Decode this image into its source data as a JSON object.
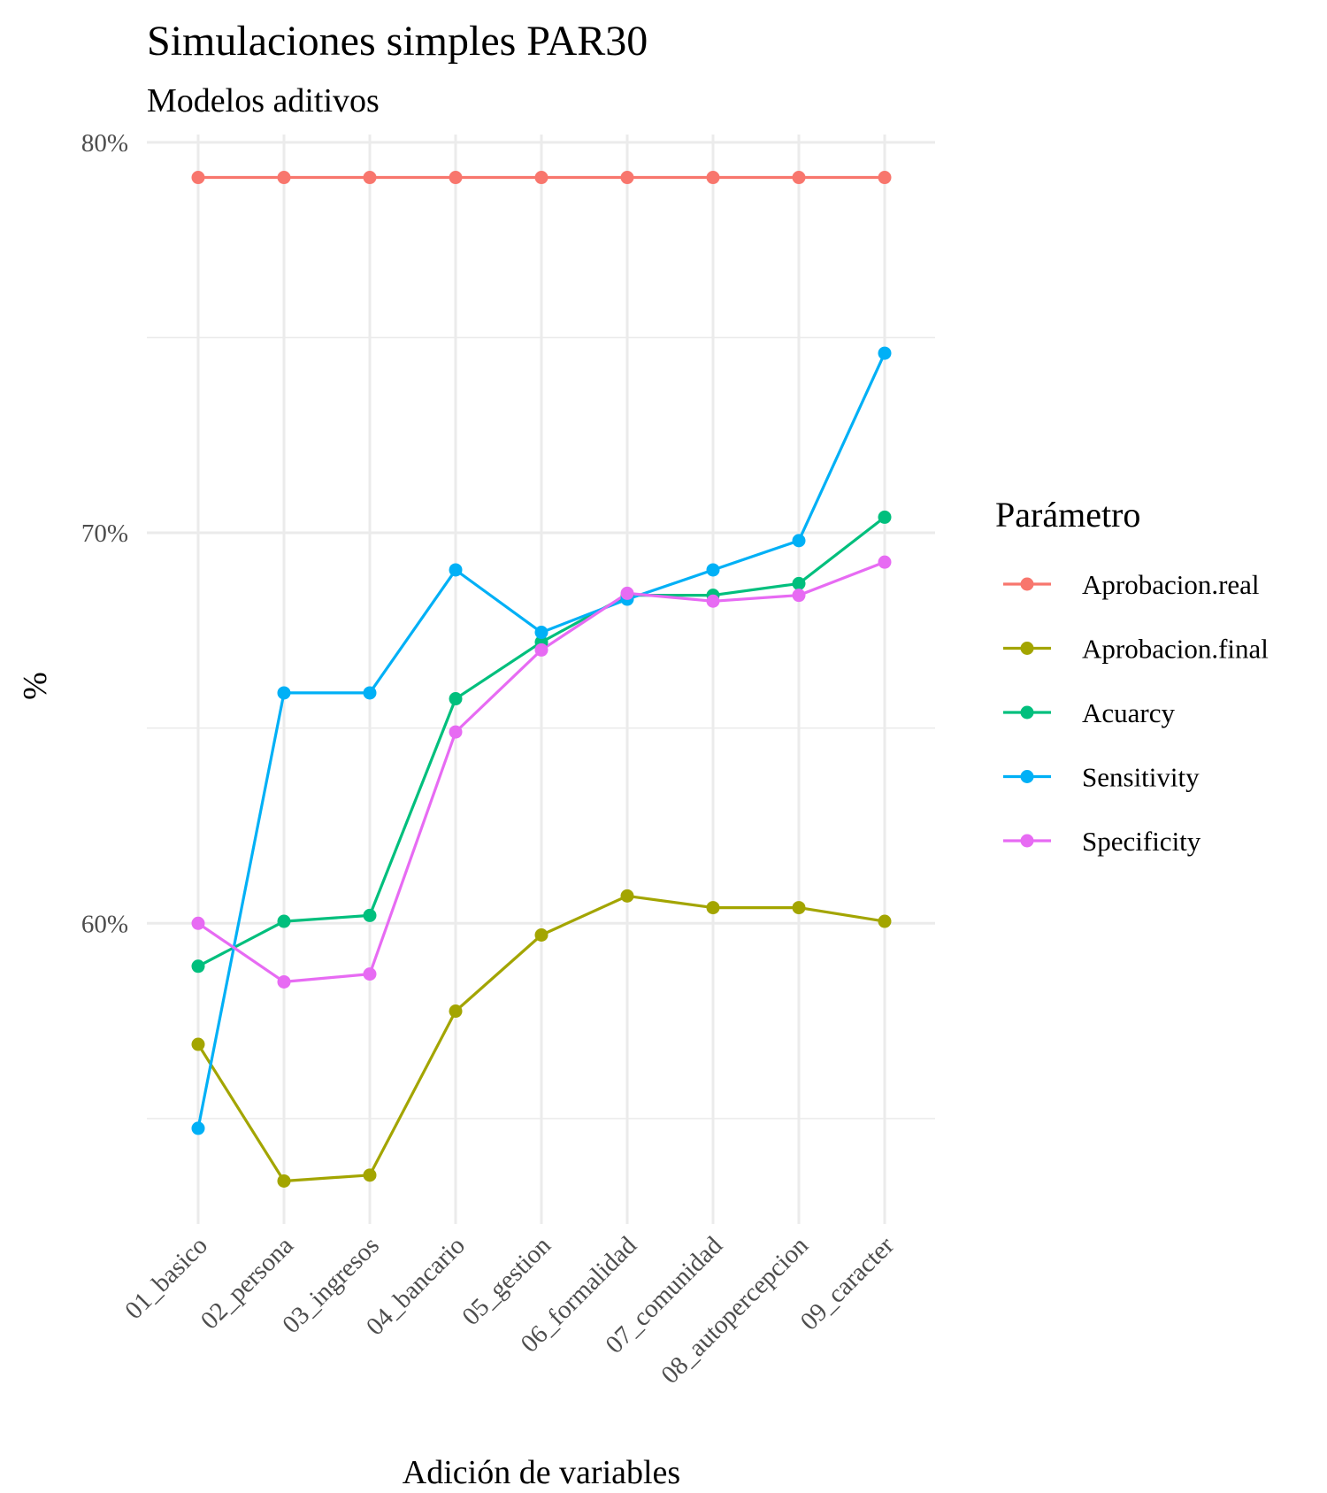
{
  "chart_data": {
    "type": "line",
    "title": "Simulaciones simples PAR30",
    "subtitle": "Modelos aditivos",
    "xlabel": "Adición de variables",
    "ylabel": "%",
    "categories": [
      "01_basico",
      "02_persona",
      "03_ingresos",
      "04_bancario",
      "05_gestion",
      "06_formalidad",
      "07_comunidad",
      "08_autopercepcion",
      "09_caracter"
    ],
    "ylim": [
      52.3,
      80.2
    ],
    "y_ticks": [
      60,
      70,
      80
    ],
    "y_tick_labels": [
      "60%",
      "70%",
      "80%"
    ],
    "grid": true,
    "legend": {
      "title": "Parámetro",
      "position": "right"
    },
    "series": [
      {
        "name": "Aprobacion.real",
        "color": "#F8766D",
        "values": [
          79.1,
          79.1,
          79.1,
          79.1,
          79.1,
          79.1,
          79.1,
          79.1,
          79.1
        ]
      },
      {
        "name": "Aprobacion.final",
        "color": "#A3A500",
        "values": [
          56.9,
          53.4,
          53.55,
          57.75,
          59.7,
          60.7,
          60.4,
          60.4,
          60.05
        ]
      },
      {
        "name": "Acuarcy",
        "color": "#00BF7D",
        "values": [
          58.9,
          60.05,
          60.2,
          65.75,
          67.2,
          68.4,
          68.4,
          68.7,
          70.4
        ]
      },
      {
        "name": "Sensitivity",
        "color": "#00B0F6",
        "values": [
          54.75,
          65.9,
          65.9,
          69.05,
          67.45,
          68.3,
          69.05,
          69.8,
          74.6
        ]
      },
      {
        "name": "Specificity",
        "color": "#E76BF3",
        "values": [
          60.0,
          58.5,
          58.7,
          64.9,
          67.0,
          68.45,
          68.25,
          68.4,
          69.25
        ]
      }
    ]
  }
}
